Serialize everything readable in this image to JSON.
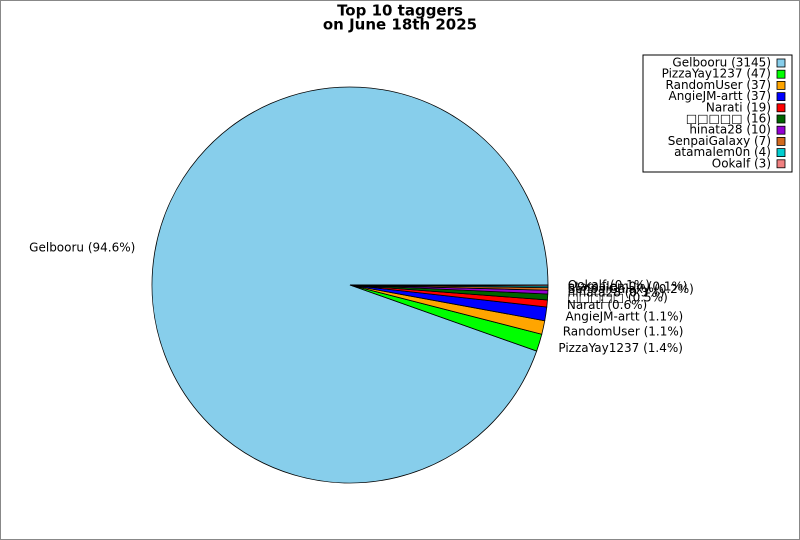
{
  "chart_data": {
    "type": "pie",
    "title": [
      "Top 10 taggers",
      "on June 18th 2025"
    ],
    "categories": [
      "Gelbooru (3145)",
      "PizzaYay1237 (47)",
      "RandomUser (37)",
      "AngieJM-artt (37)",
      "Narati (19)",
      "□□□□□ (16)",
      "hinata28 (10)",
      "SenpaiGalaxy (7)",
      "atamalem0n (4)",
      "Ookalf (3)"
    ],
    "values": [
      3145,
      47,
      37,
      37,
      19,
      16,
      10,
      7,
      4,
      3
    ],
    "slice_labels": [
      "Gelbooru (94.6%)",
      "PizzaYay1237 (1.4%)",
      "RandomUser (1.1%)",
      "AngieJM-artt (1.1%)",
      "Narati (0.6%)",
      "□□□□□ (0.5%)",
      "hinata28 (0.3%)",
      "SenpaiGalaxy (0.2%)",
      "atamalem0n (0.1%)",
      "Ookalf (0.1%)"
    ],
    "colors": [
      "#87ceeb",
      "#00ff00",
      "#ffa500",
      "#0000ff",
      "#ff0000",
      "#006400",
      "#9400d3",
      "#d2691e",
      "#00ced1",
      "#f08080"
    ],
    "legend": "upper right"
  }
}
